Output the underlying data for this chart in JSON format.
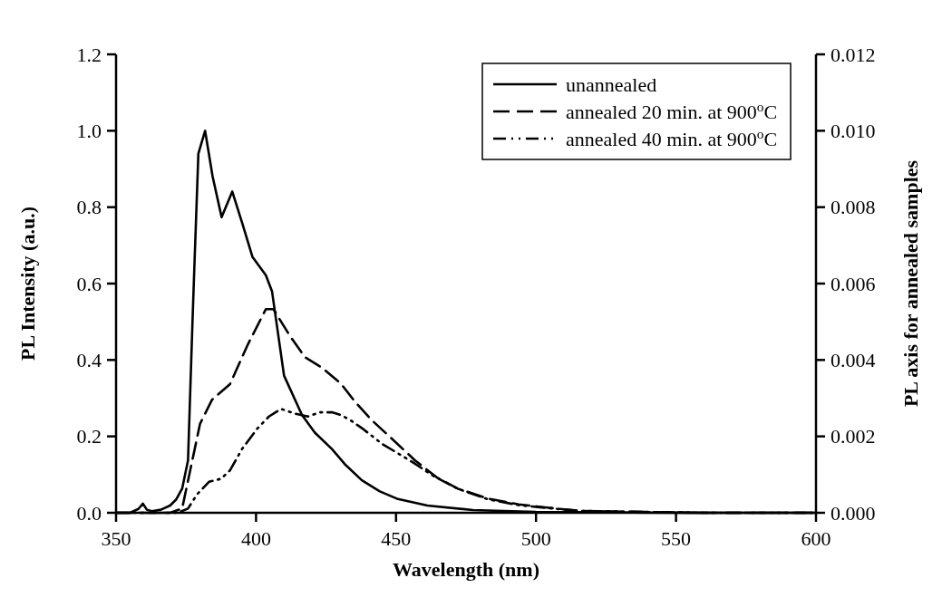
{
  "chart_data": {
    "type": "line",
    "xlabel": "Wavelength (nm)",
    "ylabel": "PL Intensity (a.u.)",
    "y2label": "PL axis for annealed samples",
    "xlim": [
      350,
      600
    ],
    "xticks": [
      350,
      400,
      450,
      500,
      550,
      600
    ],
    "ylim": [
      0,
      1.2
    ],
    "yticks": [
      {
        "value": 0,
        "label": "0.0"
      },
      {
        "value": 0.2,
        "label": "0.2"
      },
      {
        "value": 0.4,
        "label": "0.4"
      },
      {
        "value": 0.6,
        "label": "0.6"
      },
      {
        "value": 0.8,
        "label": "0.8"
      },
      {
        "value": 1,
        "label": "1.0"
      },
      {
        "value": 1.2,
        "label": "1.2"
      }
    ],
    "y2lim": [
      0,
      0.012
    ],
    "y2ticks": [
      {
        "value": 0,
        "label": "0.000"
      },
      {
        "value": 0.002,
        "label": "0.002"
      },
      {
        "value": 0.004,
        "label": "0.004"
      },
      {
        "value": 0.006,
        "label": "0.006"
      },
      {
        "value": 0.008,
        "label": "0.008"
      },
      {
        "value": 0.01,
        "label": "0.010"
      },
      {
        "value": 0.012,
        "label": "0.012"
      }
    ],
    "legend": "top right",
    "grid": false,
    "marker": "none",
    "series": [
      {
        "name": "unannealed",
        "color": "#000000",
        "line_style": "solid",
        "x": [
          350,
          355,
          358,
          359.6,
          361,
          362.8,
          366,
          369.3,
          371.5,
          373.6,
          375.7,
          377.3,
          377.8,
          379.4,
          381.8,
          384.5,
          387.7,
          391.5,
          395,
          398.7,
          403.5,
          405.7,
          410,
          416.4,
          421,
          427.1,
          432,
          437.8,
          444.2,
          450.3,
          461.2,
          477.5,
          500,
          550,
          600
        ],
        "values": [
          0,
          0,
          0.01,
          0.024,
          0.008,
          0.004,
          0.008,
          0.019,
          0.035,
          0.063,
          0.137,
          0.5,
          0.607,
          0.94,
          1.0,
          0.88,
          0.774,
          0.841,
          0.76,
          0.67,
          0.622,
          0.58,
          0.359,
          0.256,
          0.21,
          0.167,
          0.125,
          0.085,
          0.056,
          0.037,
          0.019,
          0.007,
          0.002,
          0,
          0
        ]
      },
      {
        "name": "annealed 20 min. at 900$^{o}$C",
        "color": "#000000",
        "line_style": "dashed",
        "axis": "y2",
        "x": [
          350,
          369.3,
          373.6,
          376.8,
          380,
          384.3,
          390.7,
          397.1,
          403.5,
          406.2,
          412.1,
          417.5,
          423.9,
          430.3,
          435.1,
          441.1,
          448.2,
          456.8,
          464.5,
          472.1,
          483,
          493.8,
          504.7,
          515.5,
          540,
          560,
          600
        ],
        "values": [
          0,
          0,
          0.00011,
          0.00122,
          0.00233,
          0.00296,
          0.00337,
          0.00441,
          0.00533,
          0.00533,
          0.00463,
          0.00407,
          0.00378,
          0.00338,
          0.00293,
          0.00244,
          0.00196,
          0.00137,
          0.00093,
          0.00063,
          0.00037,
          0.00022,
          0.00013,
          5e-05,
          2e-05,
          0,
          0
        ]
      },
      {
        "name": "annealed 40 min. at 900$^{o}$C",
        "color": "#000000",
        "line_style": "dashdot",
        "axis": "y2",
        "x": [
          350,
          372,
          375.7,
          378.9,
          383.2,
          387.5,
          390.7,
          395,
          400.3,
          404.6,
          408.9,
          414.2,
          418.5,
          422.8,
          427.1,
          430.3,
          434,
          438.3,
          444.9,
          455.8,
          463.4,
          472,
          483,
          493.8,
          504.7,
          515.5,
          540,
          560,
          600
        ],
        "values": [
          0,
          0,
          0.00011,
          0.00048,
          0.00081,
          0.00089,
          0.00111,
          0.00167,
          0.00219,
          0.00252,
          0.00272,
          0.00259,
          0.00252,
          0.00263,
          0.00263,
          0.00256,
          0.00241,
          0.00219,
          0.00181,
          0.00133,
          0.00096,
          0.00063,
          0.00035,
          0.0002,
          0.00012,
          5e-05,
          2e-05,
          0,
          0
        ]
      }
    ]
  }
}
